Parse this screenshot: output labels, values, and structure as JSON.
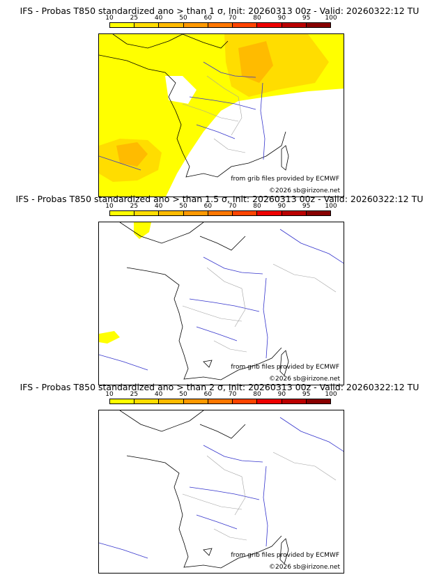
{
  "panels": [
    {
      "title": "IFS - Probas T850  standardized ano > than 1 σ, Init: 20260313 00z - Valid: 20260322:12 TU",
      "threshold": "1 σ",
      "credit_source": "from grib files provided by ECMWF",
      "credit_copyright": "©2026 sb@irizone.net"
    },
    {
      "title": "IFS - Probas T850  standardized ano > than 1.5 σ, Init: 20260313 00z - Valid: 20260322:12 TU",
      "threshold": "1.5 σ",
      "credit_source": "from grib files provided by ECMWF",
      "credit_copyright": "©2026 sb@irizone.net"
    },
    {
      "title": "IFS - Probas T850  standardized ano > than 2 σ, Init: 20260313 00z - Valid: 20260322:12 TU",
      "threshold": "2 σ",
      "credit_source": "from grib files provided by ECMWF",
      "credit_copyright": "©2026 sb@irizone.net"
    }
  ],
  "colorbar": {
    "ticks": [
      "10",
      "25",
      "40",
      "50",
      "60",
      "70",
      "80",
      "90",
      "95",
      "100"
    ],
    "colors": [
      "#ffff00",
      "#ffdd00",
      "#ffbb00",
      "#ff9900",
      "#ff7700",
      "#ff4400",
      "#ee0000",
      "#bb0000",
      "#880000"
    ]
  },
  "colors": {
    "coast": "#000000",
    "rivers": "#3333cc",
    "borders": "#a0a0a0",
    "low_prob": "#ffff00",
    "mid_prob": "#ffdd00",
    "high_prob": "#ffbb00"
  }
}
